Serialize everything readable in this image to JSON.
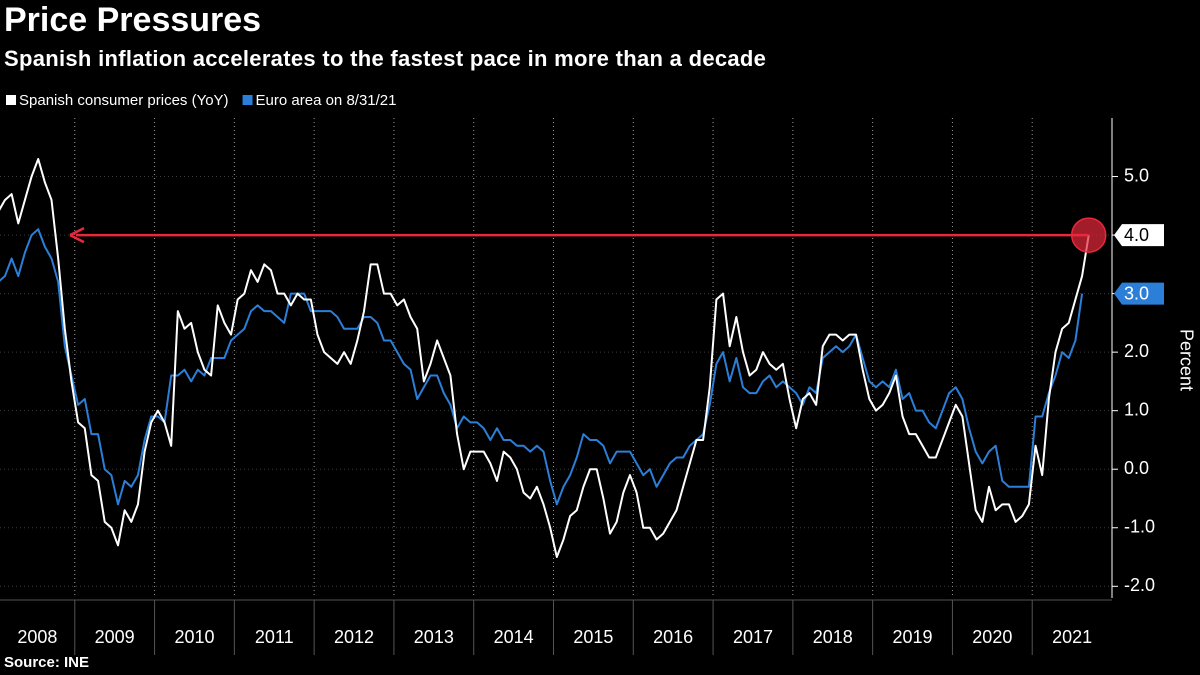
{
  "chart_data": {
    "type": "line",
    "title": "Price Pressures",
    "subtitle": "Spanish inflation accelerates to the fastest pace in more than a decade",
    "source": "Source: INE",
    "y_label": "Percent",
    "x": [
      "2008-01",
      "2008-02",
      "2008-03",
      "2008-04",
      "2008-05",
      "2008-06",
      "2008-07",
      "2008-08",
      "2008-09",
      "2008-10",
      "2008-11",
      "2008-12",
      "2009-01",
      "2009-02",
      "2009-03",
      "2009-04",
      "2009-05",
      "2009-06",
      "2009-07",
      "2009-08",
      "2009-09",
      "2009-10",
      "2009-11",
      "2009-12",
      "2010-01",
      "2010-02",
      "2010-03",
      "2010-04",
      "2010-05",
      "2010-06",
      "2010-07",
      "2010-08",
      "2010-09",
      "2010-10",
      "2010-11",
      "2010-12",
      "2011-01",
      "2011-02",
      "2011-03",
      "2011-04",
      "2011-05",
      "2011-06",
      "2011-07",
      "2011-08",
      "2011-09",
      "2011-10",
      "2011-11",
      "2011-12",
      "2012-01",
      "2012-02",
      "2012-03",
      "2012-04",
      "2012-05",
      "2012-06",
      "2012-07",
      "2012-08",
      "2012-09",
      "2012-10",
      "2012-11",
      "2012-12",
      "2013-01",
      "2013-02",
      "2013-03",
      "2013-04",
      "2013-05",
      "2013-06",
      "2013-07",
      "2013-08",
      "2013-09",
      "2013-10",
      "2013-11",
      "2013-12",
      "2014-01",
      "2014-02",
      "2014-03",
      "2014-04",
      "2014-05",
      "2014-06",
      "2014-07",
      "2014-08",
      "2014-09",
      "2014-10",
      "2014-11",
      "2014-12",
      "2015-01",
      "2015-02",
      "2015-03",
      "2015-04",
      "2015-05",
      "2015-06",
      "2015-07",
      "2015-08",
      "2015-09",
      "2015-10",
      "2015-11",
      "2015-12",
      "2016-01",
      "2016-02",
      "2016-03",
      "2016-04",
      "2016-05",
      "2016-06",
      "2016-07",
      "2016-08",
      "2016-09",
      "2016-10",
      "2016-11",
      "2016-12",
      "2017-01",
      "2017-02",
      "2017-03",
      "2017-04",
      "2017-05",
      "2017-06",
      "2017-07",
      "2017-08",
      "2017-09",
      "2017-10",
      "2017-11",
      "2017-12",
      "2018-01",
      "2018-02",
      "2018-03",
      "2018-04",
      "2018-05",
      "2018-06",
      "2018-07",
      "2018-08",
      "2018-09",
      "2018-10",
      "2018-11",
      "2018-12",
      "2019-01",
      "2019-02",
      "2019-03",
      "2019-04",
      "2019-05",
      "2019-06",
      "2019-07",
      "2019-08",
      "2019-09",
      "2019-10",
      "2019-11",
      "2019-12",
      "2020-01",
      "2020-02",
      "2020-03",
      "2020-04",
      "2020-05",
      "2020-06",
      "2020-07",
      "2020-08",
      "2020-09",
      "2020-10",
      "2020-11",
      "2020-12",
      "2021-01",
      "2021-02",
      "2021-03",
      "2021-04",
      "2021-05",
      "2021-06",
      "2021-07",
      "2021-08",
      "2021-09"
    ],
    "series": [
      {
        "name": "Spanish consumer prices (YoY)",
        "color": "#ffffff",
        "last_value_label": "4.0",
        "values": [
          4.4,
          4.6,
          4.7,
          4.2,
          4.6,
          5.0,
          5.3,
          4.9,
          4.6,
          3.6,
          2.4,
          1.5,
          0.8,
          0.7,
          -0.1,
          -0.2,
          -0.9,
          -1.0,
          -1.3,
          -0.7,
          -0.9,
          -0.6,
          0.3,
          0.8,
          1.0,
          0.8,
          0.4,
          2.7,
          2.4,
          2.5,
          2.0,
          1.7,
          1.6,
          2.8,
          2.5,
          2.3,
          2.9,
          3.0,
          3.4,
          3.2,
          3.5,
          3.4,
          3.0,
          3.0,
          2.8,
          3.0,
          2.9,
          2.9,
          2.3,
          2.0,
          1.9,
          1.8,
          2.0,
          1.8,
          2.2,
          2.7,
          3.5,
          3.5,
          3.0,
          3.0,
          2.8,
          2.9,
          2.6,
          2.4,
          1.5,
          1.8,
          2.2,
          1.9,
          1.6,
          0.6,
          0.0,
          0.3,
          0.3,
          0.3,
          0.1,
          -0.2,
          0.3,
          0.2,
          0.0,
          -0.4,
          -0.5,
          -0.3,
          -0.6,
          -1.0,
          -1.5,
          -1.2,
          -0.8,
          -0.7,
          -0.3,
          0.0,
          0.0,
          -0.5,
          -1.1,
          -0.9,
          -0.4,
          -0.1,
          -0.4,
          -1.0,
          -1.0,
          -1.2,
          -1.1,
          -0.9,
          -0.7,
          -0.3,
          0.1,
          0.5,
          0.5,
          1.4,
          2.9,
          3.0,
          2.1,
          2.6,
          2.0,
          1.6,
          1.7,
          2.0,
          1.8,
          1.7,
          1.8,
          1.2,
          0.7,
          1.2,
          1.3,
          1.1,
          2.1,
          2.3,
          2.3,
          2.2,
          2.3,
          2.3,
          1.7,
          1.2,
          1.0,
          1.1,
          1.3,
          1.6,
          0.9,
          0.6,
          0.6,
          0.4,
          0.2,
          0.2,
          0.5,
          0.8,
          1.1,
          0.9,
          0.1,
          -0.7,
          -0.9,
          -0.3,
          -0.7,
          -0.6,
          -0.6,
          -0.9,
          -0.8,
          -0.6,
          0.4,
          -0.1,
          1.2,
          2.0,
          2.4,
          2.5,
          2.9,
          3.3,
          4.0
        ]
      },
      {
        "name": "Euro area on 8/31/21",
        "color": "#2b7fd8",
        "last_value_label": "3.0",
        "values": [
          3.2,
          3.3,
          3.6,
          3.3,
          3.7,
          4.0,
          4.1,
          3.8,
          3.6,
          3.2,
          2.1,
          1.6,
          1.1,
          1.2,
          0.6,
          0.6,
          0.0,
          -0.1,
          -0.6,
          -0.2,
          -0.3,
          -0.1,
          0.5,
          0.9,
          0.9,
          0.8,
          1.6,
          1.6,
          1.7,
          1.5,
          1.7,
          1.6,
          1.9,
          1.9,
          1.9,
          2.2,
          2.3,
          2.4,
          2.7,
          2.8,
          2.7,
          2.7,
          2.6,
          2.5,
          3.0,
          3.0,
          3.0,
          2.7,
          2.7,
          2.7,
          2.7,
          2.6,
          2.4,
          2.4,
          2.4,
          2.6,
          2.6,
          2.5,
          2.2,
          2.2,
          2.0,
          1.8,
          1.7,
          1.2,
          1.4,
          1.6,
          1.6,
          1.3,
          1.1,
          0.7,
          0.9,
          0.8,
          0.8,
          0.7,
          0.5,
          0.7,
          0.5,
          0.5,
          0.4,
          0.4,
          0.3,
          0.4,
          0.3,
          -0.2,
          -0.6,
          -0.3,
          -0.1,
          0.2,
          0.6,
          0.5,
          0.5,
          0.4,
          0.1,
          0.3,
          0.3,
          0.3,
          0.1,
          -0.1,
          0.0,
          -0.3,
          -0.1,
          0.1,
          0.2,
          0.2,
          0.4,
          0.5,
          0.6,
          1.1,
          1.8,
          2.0,
          1.5,
          1.9,
          1.4,
          1.3,
          1.3,
          1.5,
          1.6,
          1.4,
          1.5,
          1.4,
          1.3,
          1.1,
          1.4,
          1.3,
          1.9,
          2.0,
          2.1,
          2.0,
          2.1,
          2.3,
          1.9,
          1.5,
          1.4,
          1.5,
          1.4,
          1.7,
          1.2,
          1.3,
          1.0,
          1.0,
          0.8,
          0.7,
          1.0,
          1.3,
          1.4,
          1.2,
          0.7,
          0.3,
          0.1,
          0.3,
          0.4,
          -0.2,
          -0.3,
          -0.3,
          -0.3,
          -0.3,
          0.9,
          0.9,
          1.3,
          1.6,
          2.0,
          1.9,
          2.2,
          3.0,
          null
        ]
      }
    ],
    "xlim": [
      "2008-01",
      "2022-01"
    ],
    "xticks": [
      2008,
      2009,
      2010,
      2011,
      2012,
      2013,
      2014,
      2015,
      2016,
      2017,
      2018,
      2019,
      2020,
      2021
    ],
    "ylim": [
      -2.2,
      6.0
    ],
    "yticks": [
      {
        "value": -2,
        "label": "-2.0"
      },
      {
        "value": -1,
        "label": "-1.0"
      },
      {
        "value": 0,
        "label": "0.0"
      },
      {
        "value": 1,
        "label": "1.0"
      },
      {
        "value": 2,
        "label": "2.0"
      },
      {
        "value": 3,
        "label": "3.0"
      },
      {
        "value": 4,
        "label": "4.0"
      },
      {
        "value": 5,
        "label": "5.0"
      }
    ],
    "grid": true,
    "annotation_color": "#e8283c"
  }
}
